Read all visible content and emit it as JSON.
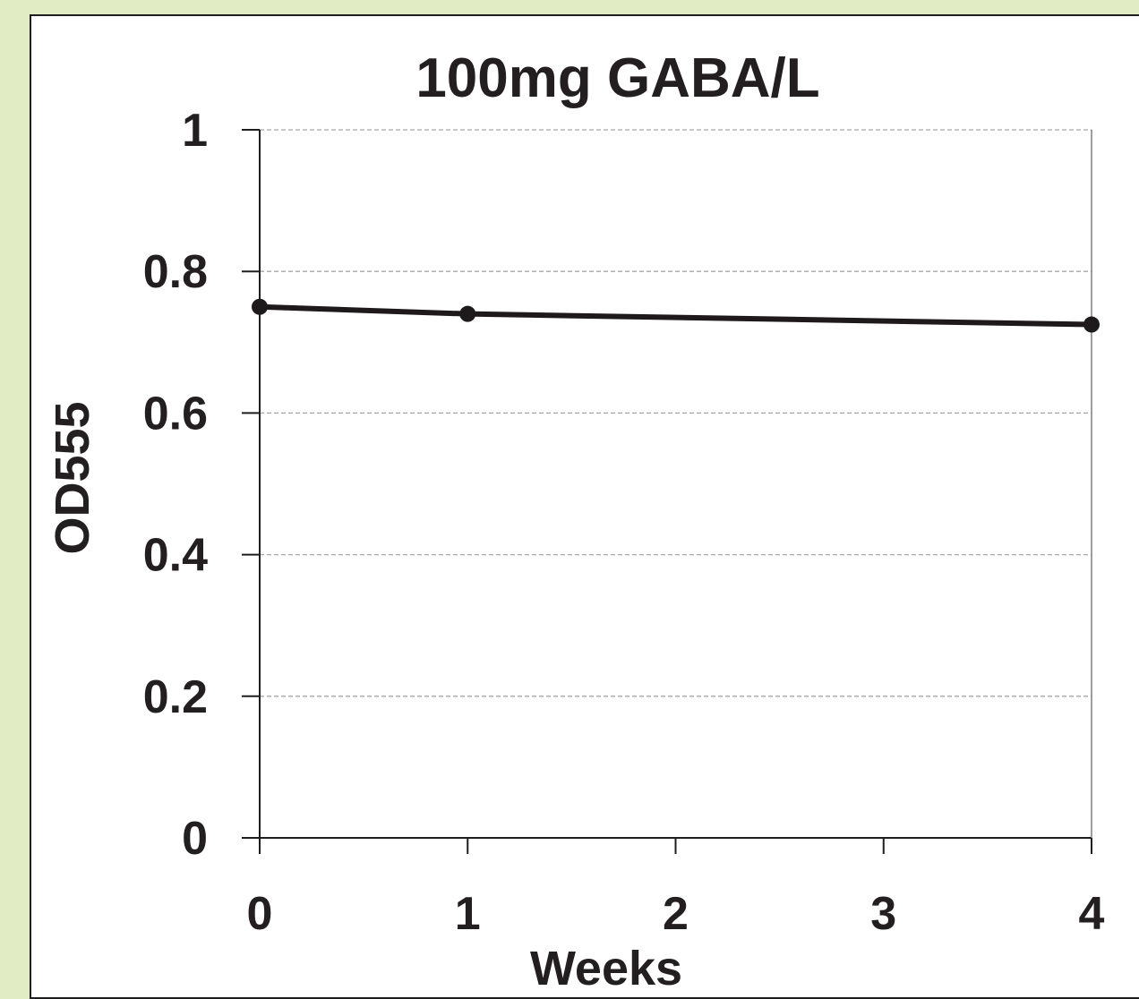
{
  "colors": {
    "background": "#e2ecc4",
    "panel": "#ffffff",
    "line": "#1e1a1b",
    "grid": "#a6a6a6"
  },
  "chart_data": {
    "type": "line",
    "title": "100mg GABA/L",
    "xlabel": "Weeks",
    "ylabel": "OD555",
    "xlim": [
      0,
      4
    ],
    "ylim": [
      0,
      1
    ],
    "x_ticks": [
      "0",
      "1",
      "2",
      "3",
      "4"
    ],
    "y_ticks": [
      "0",
      "0.2",
      "0.4",
      "0.6",
      "0.8",
      "1"
    ],
    "grid": "horizontal dashed",
    "legend": "none",
    "series": [
      {
        "x": [
          0,
          1,
          4
        ],
        "y": [
          0.75,
          0.74,
          0.725
        ]
      }
    ]
  }
}
